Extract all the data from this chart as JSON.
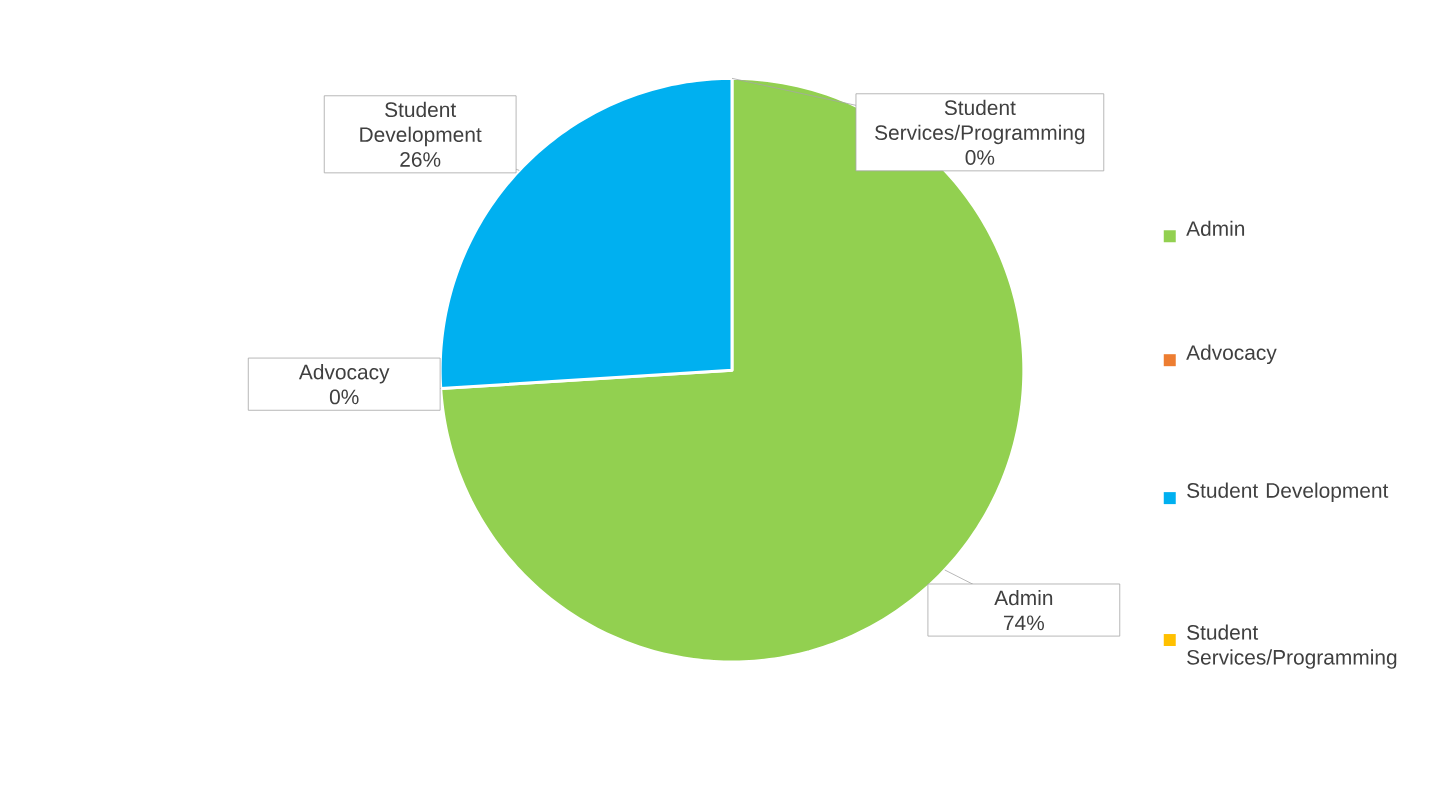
{
  "chart_data": {
    "type": "pie",
    "categories": [
      "Admin",
      "Advocacy",
      "Student Development",
      "Student Services/Programming"
    ],
    "values": [
      74,
      0,
      26,
      0
    ],
    "value_labels": [
      "74%",
      "0%",
      "26%",
      "0%"
    ],
    "colors": [
      "#92d050",
      "#ed7d31",
      "#00b0f0",
      "#ffc000"
    ],
    "legend": "right"
  }
}
